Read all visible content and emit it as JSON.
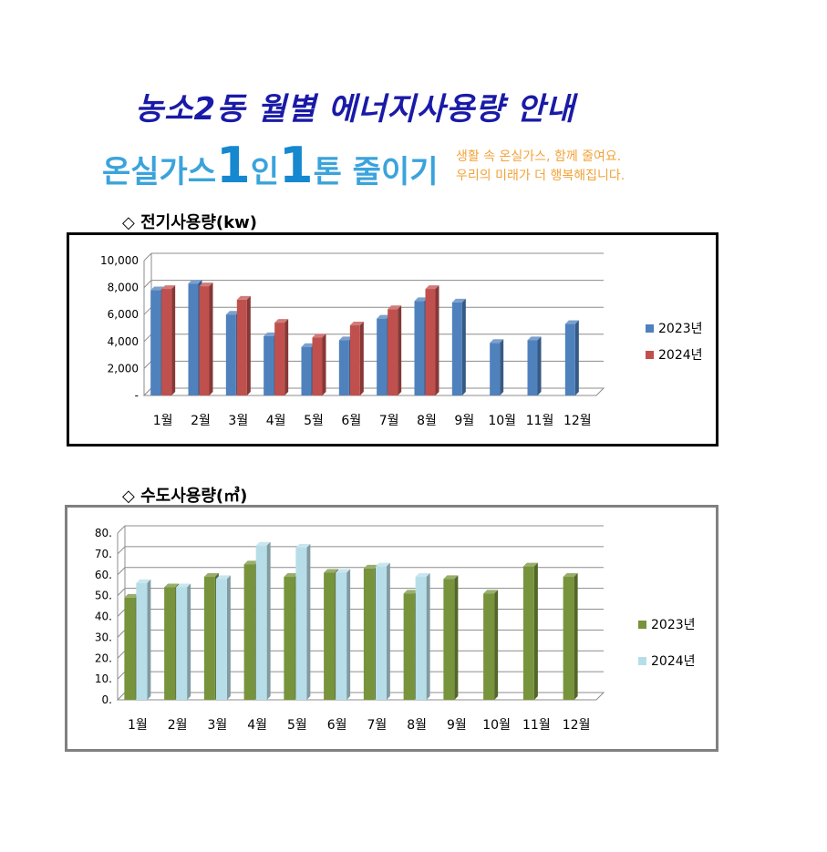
{
  "title": "농소2동 월별 에너지사용량 안내",
  "banner": {
    "main_prefix": "온실가스",
    "one_a": "1",
    "in": "인",
    "one_b": "1",
    "main_suffix": "톤 줄이기",
    "sub_line1": "생활 속 온실가스, 함께 줄여요.",
    "sub_line2": "우리의 미래가 더 행복해집니다."
  },
  "sections": {
    "electricity_title": "◇ 전기사용량(kw)",
    "water_title": "◇ 수도사용량(㎥)"
  },
  "colors": {
    "elec_2023": "#4f81bd",
    "elec_2024": "#c0504d",
    "water_2023": "#77933c",
    "water_2024": "#b7dee8"
  },
  "chart_data": [
    {
      "type": "bar",
      "categories": [
        "1월",
        "2월",
        "3월",
        "4월",
        "5월",
        "6월",
        "7월",
        "8월",
        "9월",
        "10월",
        "11월",
        "12월"
      ],
      "series": [
        {
          "name": "2023년",
          "values": [
            7800,
            8300,
            6000,
            4400,
            3600,
            4100,
            5700,
            7000,
            6900,
            3900,
            4100,
            5300
          ]
        },
        {
          "name": "2024년",
          "values": [
            7900,
            8100,
            7100,
            5400,
            4300,
            5200,
            6400,
            7900,
            null,
            null,
            null,
            null
          ]
        }
      ],
      "ylim": [
        0,
        10000
      ],
      "yticks": [
        "-",
        "2,000",
        "4,000",
        "6,000",
        "8,000",
        "10,000"
      ],
      "ytick_values": [
        0,
        2000,
        4000,
        6000,
        8000,
        10000
      ],
      "legend": "right",
      "grid": true
    },
    {
      "type": "bar",
      "categories": [
        "1월",
        "2월",
        "3월",
        "4월",
        "5월",
        "6월",
        "7월",
        "8월",
        "9월",
        "10월",
        "11월",
        "12월"
      ],
      "series": [
        {
          "name": "2023년",
          "values": [
            49,
            54,
            59,
            65,
            59,
            61,
            63,
            51,
            58,
            51,
            64,
            59
          ]
        },
        {
          "name": "2024년",
          "values": [
            56,
            54,
            58,
            74,
            73,
            61,
            64,
            59,
            null,
            null,
            null,
            null
          ]
        }
      ],
      "ylim": [
        0,
        80
      ],
      "yticks": [
        "0.",
        "10.",
        "20.",
        "30.",
        "40.",
        "50.",
        "60.",
        "70.",
        "80."
      ],
      "ytick_values": [
        0,
        10,
        20,
        30,
        40,
        50,
        60,
        70,
        80
      ],
      "legend": "right",
      "grid": true
    }
  ]
}
